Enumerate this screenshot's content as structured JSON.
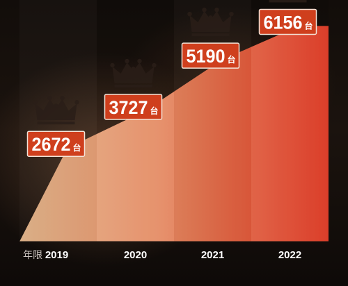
{
  "chart_data": {
    "type": "area",
    "categories": [
      "2019",
      "2020",
      "2021",
      "2022"
    ],
    "values": [
      2672,
      3727,
      5190,
      6156
    ],
    "value_unit": "台",
    "x_axis_unit_label": "年限",
    "ylim": [
      0,
      6700
    ],
    "grid": false,
    "legend": "none"
  },
  "colors": {
    "area_light": "#e2b58c",
    "area_mid": "#e58a62",
    "area_dark": "#d9301a",
    "badge": "#cf3f1d",
    "badge_border": "#f4e4d8",
    "crown": "#2a1e18"
  },
  "icons": {
    "marker": "crown-icon"
  }
}
